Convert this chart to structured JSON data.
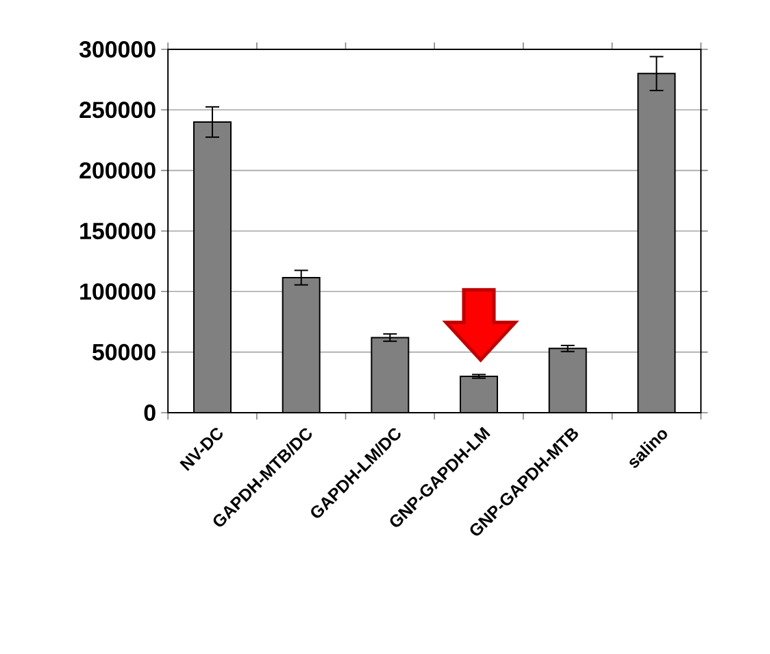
{
  "chart_data": {
    "type": "bar",
    "categories": [
      "NV-DC",
      "GAPDH-MTB/DC",
      "GAPDH-LM/DC",
      "GNP-GAPDH-LM",
      "GNP-GAPDH-MTB",
      "salino"
    ],
    "values": [
      240000,
      111500,
      62000,
      30000,
      53000,
      280000
    ],
    "errors": [
      12500,
      6000,
      3000,
      1500,
      2500,
      14000
    ],
    "color": "#808080",
    "ylim": [
      0,
      300000
    ],
    "yticks": [
      0,
      50000,
      100000,
      150000,
      200000,
      250000,
      300000
    ],
    "grid": "y"
  }
}
